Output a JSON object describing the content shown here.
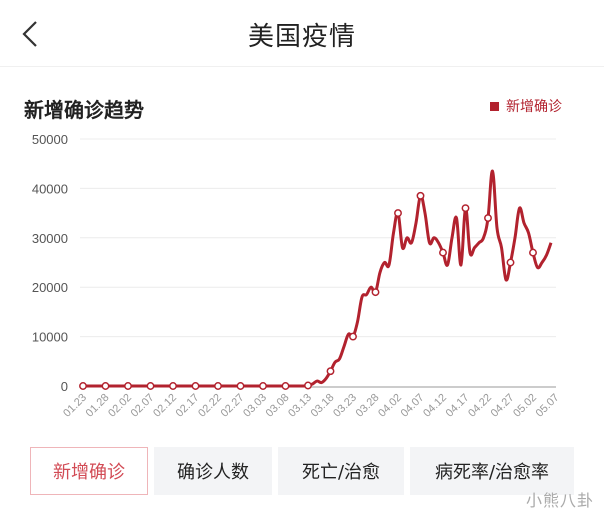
{
  "header": {
    "title": "美国疫情",
    "back_icon": "chevron-left-icon"
  },
  "section": {
    "title": "新增确诊趋势",
    "legend_label": "新增确诊",
    "legend_color": "#b2222e"
  },
  "tabs": [
    {
      "label": "新增确诊",
      "active": true
    },
    {
      "label": "确诊人数",
      "active": false
    },
    {
      "label": "死亡/治愈",
      "active": false
    },
    {
      "label": "病死率/治愈率",
      "active": false
    }
  ],
  "watermark": "小熊八卦",
  "colors": {
    "line": "#b2222e",
    "active_tab_text": "#d24b55",
    "active_tab_border": "#efb5b9",
    "tab_bg": "#f3f4f6"
  },
  "chart_data": {
    "type": "line",
    "title": "新增确诊趋势",
    "xlabel": "",
    "ylabel": "",
    "ylim": [
      0,
      50000
    ],
    "yticks": [
      0,
      10000,
      20000,
      30000,
      40000,
      50000
    ],
    "grid": true,
    "legend": {
      "entries": [
        "新增确诊"
      ],
      "position": "top-right"
    },
    "x_tick_labels": [
      "01.23",
      "01.28",
      "02.02",
      "02.07",
      "02.12",
      "02.17",
      "02.22",
      "02.27",
      "03.03",
      "03.08",
      "03.13",
      "03.18",
      "03.23",
      "03.28",
      "04.02",
      "04.07",
      "04.12",
      "04.17",
      "04.22",
      "04.27",
      "05.02",
      "05.07"
    ],
    "marked_points": [
      {
        "x": "01.23",
        "y": 0
      },
      {
        "x": "01.28",
        "y": 0
      },
      {
        "x": "02.02",
        "y": 0
      },
      {
        "x": "02.07",
        "y": 0
      },
      {
        "x": "02.12",
        "y": 0
      },
      {
        "x": "02.17",
        "y": 0
      },
      {
        "x": "02.22",
        "y": 0
      },
      {
        "x": "02.27",
        "y": 0
      },
      {
        "x": "03.03",
        "y": 0
      },
      {
        "x": "03.08",
        "y": 0
      },
      {
        "x": "03.13",
        "y": 400
      },
      {
        "x": "03.18",
        "y": 3000
      },
      {
        "x": "03.23",
        "y": 10500
      },
      {
        "x": "03.28",
        "y": 20000
      },
      {
        "x": "04.02",
        "y": 31000
      },
      {
        "x": "04.07",
        "y": 29000
      },
      {
        "x": "04.12",
        "y": 29000
      },
      {
        "x": "04.17",
        "y": 24500
      },
      {
        "x": "04.22",
        "y": 30000
      },
      {
        "x": "04.27",
        "y": 21500
      },
      {
        "x": "05.02",
        "y": 31000
      },
      {
        "x": "05.07",
        "y": 29000
      }
    ],
    "series": [
      {
        "name": "新增确诊",
        "color": "#b2222e",
        "start_date": "01.23",
        "daily_values": [
          0,
          0,
          0,
          0,
          0,
          0,
          0,
          0,
          0,
          0,
          0,
          0,
          0,
          0,
          0,
          0,
          0,
          0,
          0,
          0,
          0,
          0,
          0,
          0,
          0,
          0,
          0,
          0,
          0,
          0,
          0,
          0,
          0,
          0,
          0,
          0,
          0,
          0,
          0,
          0,
          0,
          0,
          0,
          0,
          0,
          0,
          0,
          0,
          0,
          0,
          100,
          400,
          1000,
          700,
          1500,
          3000,
          4800,
          5500,
          8000,
          10500,
          10000,
          13000,
          18000,
          18500,
          20000,
          19000,
          23000,
          25000,
          24500,
          31000,
          35000,
          28000,
          30000,
          29000,
          33000,
          38500,
          35000,
          29000,
          30000,
          29000,
          27000,
          24500,
          30000,
          34000,
          24500,
          36000,
          27000,
          28000,
          29000,
          30000,
          34000,
          43500,
          32000,
          28000,
          21500,
          25000,
          30000,
          36000,
          33000,
          31000,
          27000,
          24000,
          25000,
          26500,
          29000
        ],
        "values_note": "Approximate daily new confirmed cases read from the chart, 01.23 to 05.07"
      }
    ]
  }
}
